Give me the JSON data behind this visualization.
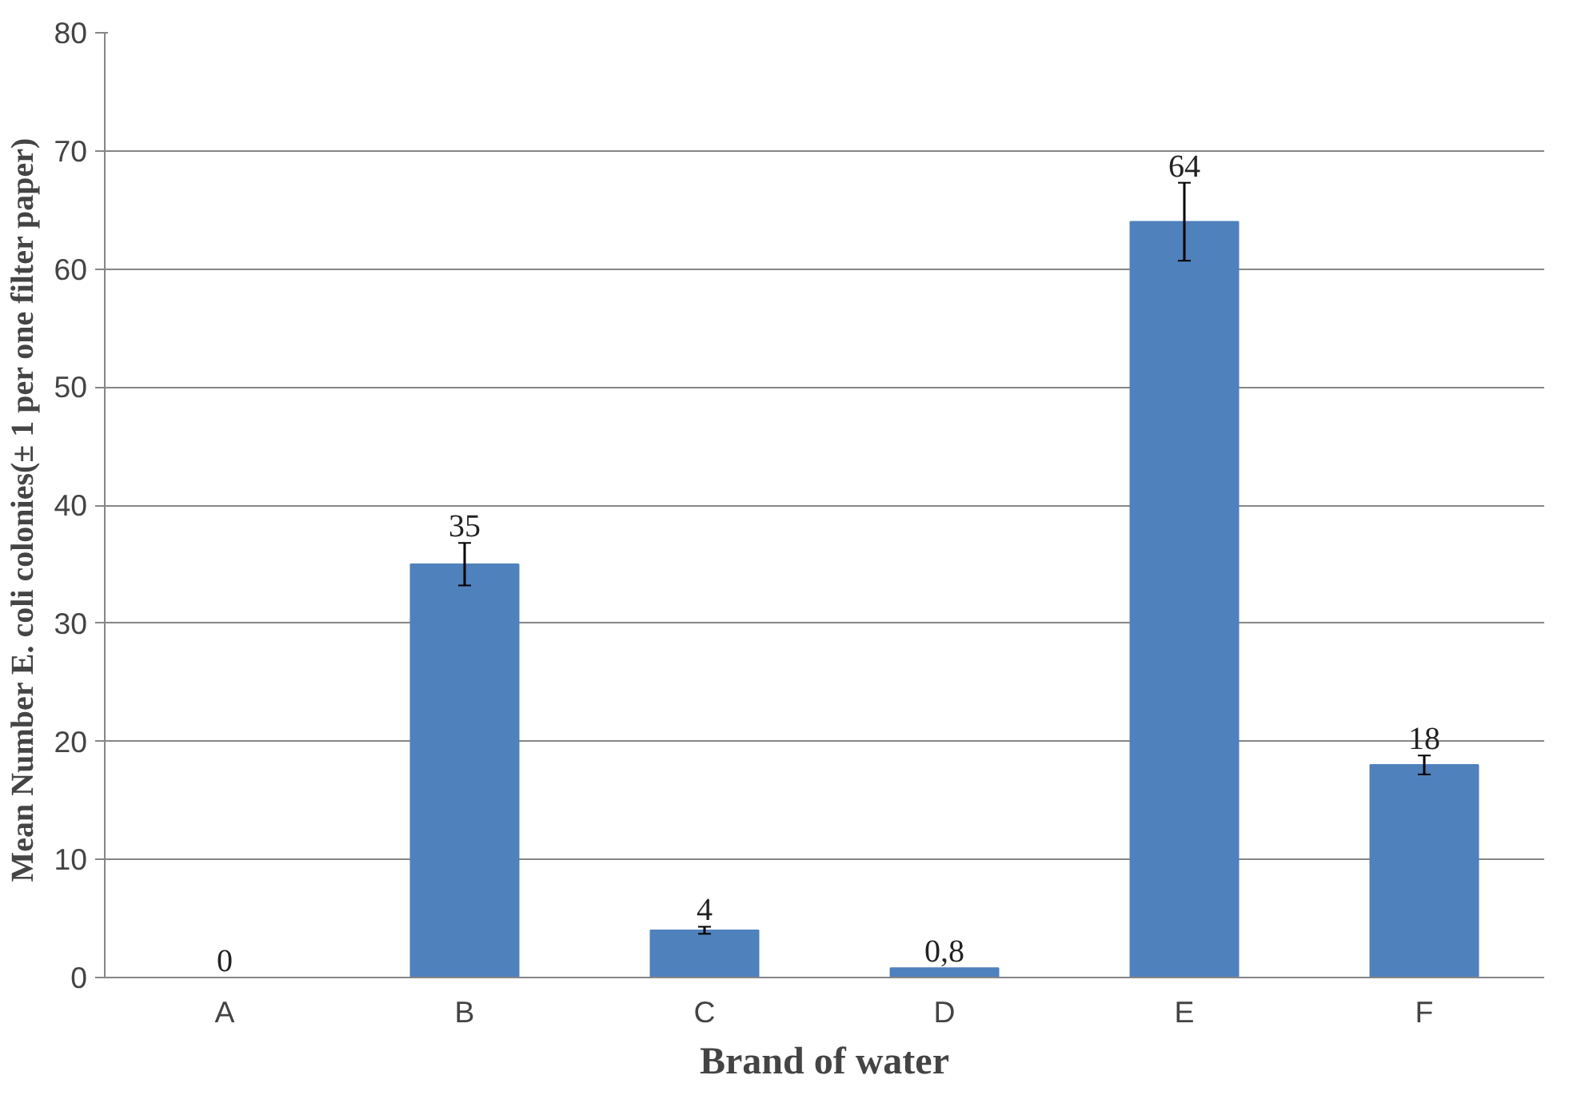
{
  "chart_data": {
    "type": "bar",
    "xlabel": "Brand of water",
    "ylabel": "Mean Number  E. coli colonies(± 1 per one filter paper)",
    "categories": [
      "A",
      "B",
      "C",
      "D",
      "E",
      "F"
    ],
    "values": [
      0,
      35,
      4,
      0.8,
      64,
      18
    ],
    "errors": [
      null,
      1.8,
      0.3,
      null,
      3.3,
      0.8
    ],
    "value_labels": [
      "0",
      "35",
      "4",
      "0,8",
      "64",
      "18"
    ],
    "color": "#4f81bd",
    "ylim": [
      0,
      80
    ],
    "yticks": [
      0,
      10,
      20,
      30,
      40,
      50,
      60,
      70,
      80
    ],
    "grid": "y"
  }
}
